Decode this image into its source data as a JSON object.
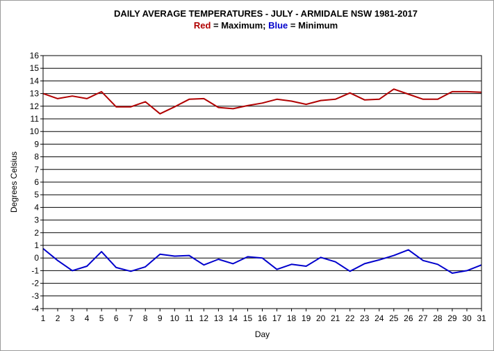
{
  "chart_data": {
    "type": "line",
    "title": "DAILY AVERAGE  TEMPERATURES - JULY - ARMIDALE NSW  1981-2017",
    "subtitle": {
      "red_word": "Red",
      "red_text": " = Maximum;  ",
      "blue_word": "Blue",
      "blue_text": " = Minimum"
    },
    "xlabel": "Day",
    "ylabel": "Degrees Celsius",
    "x": [
      1,
      2,
      3,
      4,
      5,
      6,
      7,
      8,
      9,
      10,
      11,
      12,
      13,
      14,
      15,
      16,
      17,
      18,
      19,
      20,
      21,
      22,
      23,
      24,
      25,
      26,
      27,
      28,
      29,
      30,
      31
    ],
    "ylim": [
      -4,
      16
    ],
    "ytick_step": 1,
    "grid": "horizontal",
    "series": [
      {
        "color": "#b00000",
        "values": [
          13.0,
          12.6,
          12.8,
          12.6,
          13.15,
          11.95,
          11.95,
          12.35,
          11.4,
          11.95,
          12.55,
          12.6,
          11.9,
          11.8,
          12.05,
          12.25,
          12.55,
          12.4,
          12.15,
          12.45,
          12.55,
          13.05,
          12.5,
          12.55,
          13.35,
          12.95,
          12.55,
          12.55,
          13.15,
          13.15,
          13.1
        ]
      },
      {
        "color": "#0000cc",
        "values": [
          0.75,
          -0.2,
          -1.0,
          -0.65,
          0.5,
          -0.75,
          -1.05,
          -0.7,
          0.3,
          0.15,
          0.2,
          -0.55,
          -0.1,
          -0.45,
          0.1,
          0.0,
          -0.9,
          -0.5,
          -0.65,
          0.05,
          -0.3,
          -1.05,
          -0.45,
          -0.15,
          0.2,
          0.65,
          -0.2,
          -0.5,
          -1.2,
          -1.0,
          -0.55
        ]
      }
    ]
  }
}
